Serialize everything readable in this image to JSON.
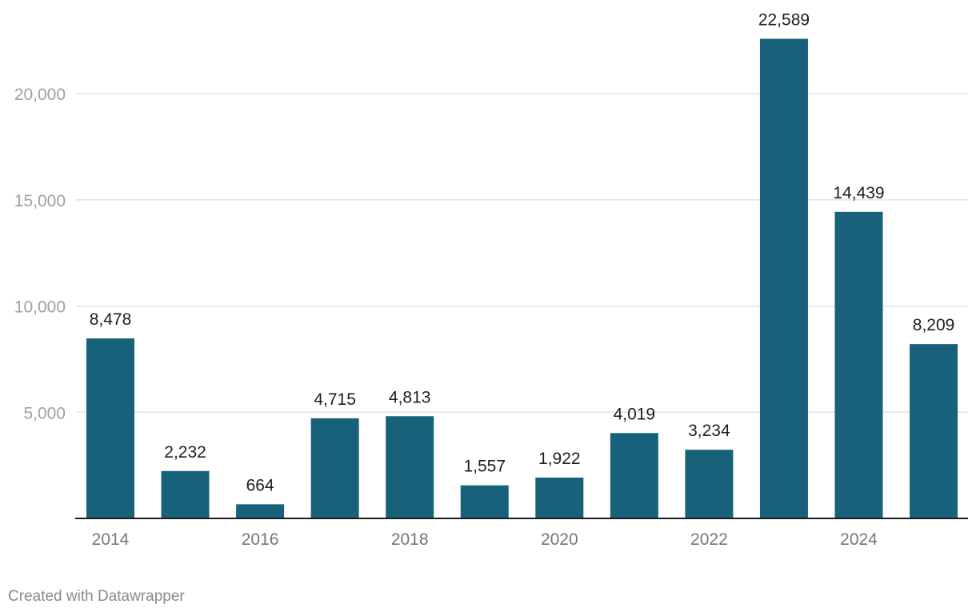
{
  "chart_data": {
    "type": "bar",
    "title": "",
    "xlabel": "",
    "ylabel": "",
    "categories": [
      "2014",
      "2015",
      "2016",
      "2017",
      "2018",
      "2019",
      "2020",
      "2021",
      "2022",
      "2023",
      "2024",
      "2025"
    ],
    "values": [
      8478,
      2232,
      664,
      4715,
      4813,
      1557,
      1922,
      4019,
      3234,
      22589,
      14439,
      8209
    ],
    "value_labels": [
      "8,478",
      "2,232",
      "664",
      "4,715",
      "4,813",
      "1,557",
      "1,922",
      "4,019",
      "3,234",
      "22,589",
      "14,439",
      "8,209"
    ],
    "x_tick_labels": [
      "2014",
      "2016",
      "2018",
      "2020",
      "2022",
      "2024"
    ],
    "y_ticks": [
      5000,
      10000,
      15000,
      20000
    ],
    "y_tick_labels": [
      "5,000",
      "10,000",
      "15,000",
      "20,000"
    ],
    "ylim": [
      0,
      22589
    ],
    "grid": true,
    "legend": "none",
    "colors": {
      "bar": "#17617a",
      "grid": "#e2e2e2",
      "baseline": "#1d1d1d"
    }
  },
  "footer": {
    "credit": "Created with Datawrapper"
  }
}
